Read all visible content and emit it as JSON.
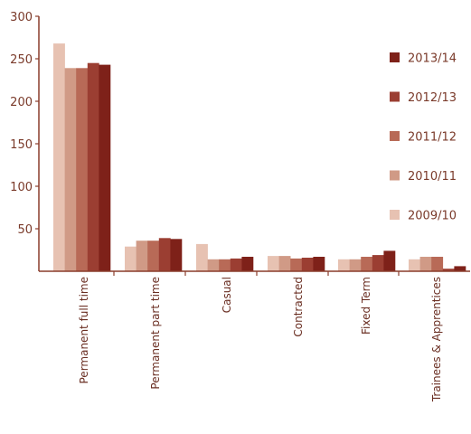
{
  "chart_data": {
    "type": "bar",
    "title": "",
    "xlabel": "",
    "ylabel": "",
    "ylim": [
      0,
      300
    ],
    "yticks": [
      50,
      100,
      150,
      200,
      250,
      300
    ],
    "grid": false,
    "legend_position": "right",
    "categories": [
      "Permanent full time",
      "Permanent part time",
      "Casual",
      "Contracted",
      "Fixed Term",
      "Trainees & Apprentices"
    ],
    "series": [
      {
        "name": "2009/10",
        "color": "#e7c2b2",
        "values": [
          268,
          29,
          32,
          18,
          14,
          14
        ]
      },
      {
        "name": "2010/11",
        "color": "#d09a86",
        "values": [
          239,
          36,
          14,
          18,
          14,
          17
        ]
      },
      {
        "name": "2011/12",
        "color": "#b86a57",
        "values": [
          239,
          36,
          14,
          15,
          17,
          17
        ]
      },
      {
        "name": "2012/13",
        "color": "#9b3e32",
        "values": [
          245,
          39,
          15,
          16,
          19,
          3
        ]
      },
      {
        "name": "2013/14",
        "color": "#7e2119",
        "values": [
          243,
          38,
          17,
          17,
          24,
          6
        ]
      }
    ],
    "legend_order": [
      "2013/14",
      "2012/13",
      "2011/12",
      "2010/11",
      "2009/10"
    ]
  }
}
